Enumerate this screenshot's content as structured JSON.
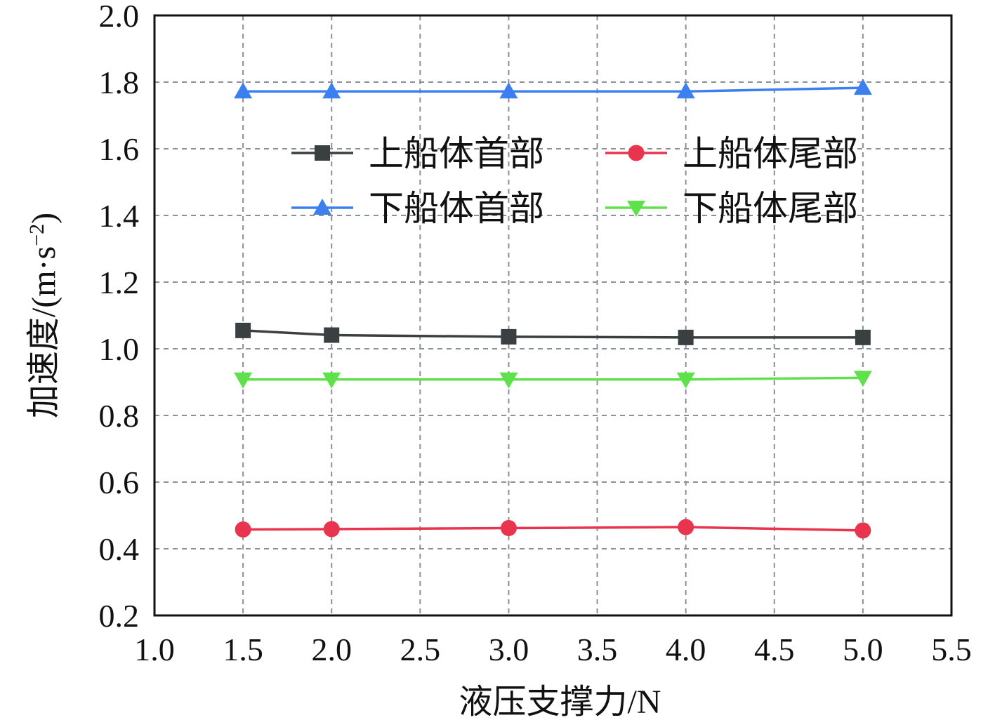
{
  "chart_data": {
    "type": "line",
    "xlabel": "液压支撑力/N",
    "ylabel_main": "加速度/(m·s",
    "ylabel_sup": "−2",
    "ylabel_close": ")",
    "xlim": [
      1.0,
      5.5
    ],
    "ylim": [
      0.2,
      2.0
    ],
    "x_ticks": [
      "1.0",
      "1.5",
      "2.0",
      "2.5",
      "3.0",
      "3.5",
      "4.0",
      "4.5",
      "5.0",
      "5.5"
    ],
    "y_ticks": [
      "0.2",
      "0.4",
      "0.6",
      "0.8",
      "1.0",
      "1.2",
      "1.4",
      "1.6",
      "1.8",
      "2.0"
    ],
    "grid": true,
    "legend_position": "upper-center",
    "x": [
      1.5,
      2.0,
      3.0,
      4.0,
      5.0
    ],
    "series": [
      {
        "name": "上船体首部",
        "color": "#3a3f42",
        "marker": "square",
        "values": [
          1.055,
          1.041,
          1.036,
          1.034,
          1.034
        ]
      },
      {
        "name": "上船体尾部",
        "color": "#e8344e",
        "marker": "circle",
        "values": [
          0.458,
          0.459,
          0.462,
          0.465,
          0.455
        ]
      },
      {
        "name": "下船体首部",
        "color": "#3b7ff0",
        "marker": "triangle-up",
        "values": [
          1.772,
          1.772,
          1.772,
          1.772,
          1.783
        ]
      },
      {
        "name": "下船体尾部",
        "color": "#5ee14a",
        "marker": "triangle-down",
        "values": [
          0.908,
          0.908,
          0.908,
          0.908,
          0.913
        ]
      }
    ]
  }
}
